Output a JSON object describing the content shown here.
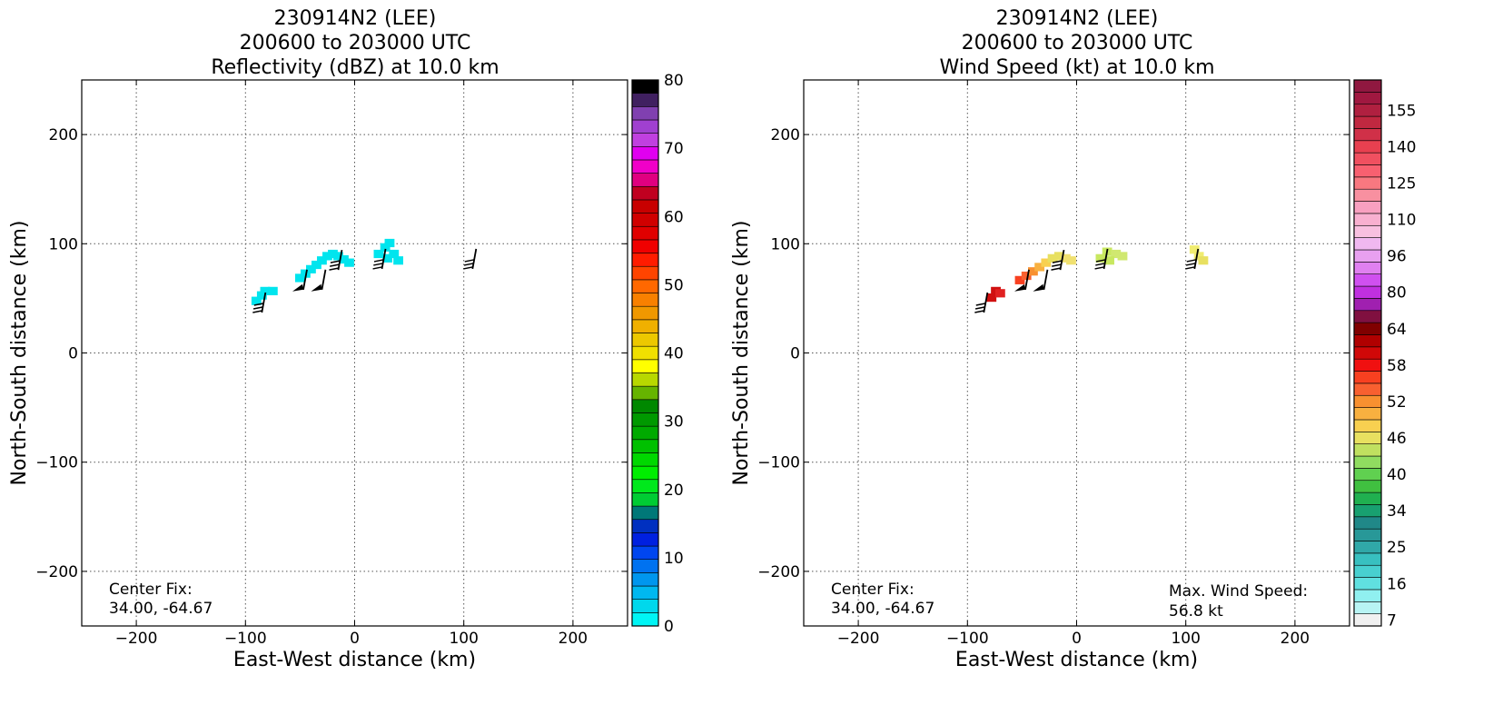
{
  "chart_data": [
    {
      "type": "heatmap",
      "title_lines": [
        "230914N2 (LEE)",
        "200600 to 203000 UTC",
        "Reflectivity (dBZ) at 10.0 km"
      ],
      "xlabel": "East-West distance (km)",
      "ylabel": "North-South distance (km)",
      "xlim": [
        -250,
        250
      ],
      "ylim": [
        -250,
        250
      ],
      "xticks": [
        -200,
        -100,
        0,
        100,
        200
      ],
      "yticks": [
        -200,
        -100,
        0,
        100,
        200
      ],
      "xtick_labels": [
        "−200",
        "−100",
        "0",
        "100",
        "200"
      ],
      "ytick_labels": [
        "−200",
        "−100",
        "0",
        "100",
        "200"
      ],
      "grid": true,
      "annotation": [
        "Center Fix:",
        "34.00, -64.67"
      ],
      "colorbar": {
        "min": 0,
        "max": 80,
        "ticks": [
          0,
          10,
          20,
          30,
          40,
          50,
          60,
          70,
          80
        ],
        "tick_labels": [
          "0",
          "10",
          "20",
          "30",
          "40",
          "50",
          "60",
          "70",
          "80"
        ],
        "colors": [
          "#00f5f5",
          "#00d8ec",
          "#00b8f0",
          "#0096ee",
          "#0072f0",
          "#0046f0",
          "#0020e0",
          "#0030c0",
          "#007878",
          "#00cc33",
          "#00e81c",
          "#00ee00",
          "#00d800",
          "#00c000",
          "#00aa00",
          "#009900",
          "#008800",
          "#66b400",
          "#b8d800",
          "#ffff00",
          "#f0e000",
          "#ecc800",
          "#f0b000",
          "#f09800",
          "#f88000",
          "#ff6800",
          "#ff4400",
          "#ff1c00",
          "#f00000",
          "#e00000",
          "#d00000",
          "#c80000",
          "#c00020",
          "#e00080",
          "#f000c8",
          "#e000f0",
          "#c040e0",
          "#a040d0",
          "#8040b0",
          "#402060",
          "#000000"
        ]
      },
      "regions": [
        {
          "name": "echo-west",
          "color": "#00e5ee",
          "cells": [
            [
              -90,
              47
            ],
            [
              -82,
              56
            ],
            [
              -75,
              56
            ],
            [
              -85,
              52
            ]
          ]
        },
        {
          "name": "echo-central",
          "color": "#00e5ee",
          "cells": [
            [
              -50,
              68
            ],
            [
              -45,
              72
            ],
            [
              -40,
              76
            ],
            [
              -35,
              80
            ],
            [
              -30,
              84
            ],
            [
              -25,
              88
            ],
            [
              -20,
              90
            ],
            [
              -15,
              88
            ],
            [
              -10,
              85
            ],
            [
              -5,
              82
            ]
          ]
        },
        {
          "name": "echo-east",
          "color": "#00e5ee",
          "cells": [
            [
              22,
              90
            ],
            [
              28,
              96
            ],
            [
              32,
              100
            ],
            [
              36,
              90
            ],
            [
              40,
              84
            ],
            [
              30,
              86
            ]
          ]
        }
      ],
      "wind_barbs": [
        {
          "x": -85,
          "y": 37,
          "speed": 30
        },
        {
          "x": -47,
          "y": 58,
          "speed": 50
        },
        {
          "x": -30,
          "y": 58,
          "speed": 50
        },
        {
          "x": -15,
          "y": 76,
          "speed": 30
        },
        {
          "x": 25,
          "y": 77,
          "speed": 25
        },
        {
          "x": 108,
          "y": 77,
          "speed": 25
        }
      ]
    },
    {
      "type": "heatmap",
      "title_lines": [
        "230914N2 (LEE)",
        "200600 to 203000 UTC",
        "Wind Speed (kt) at 10.0 km"
      ],
      "xlabel": "East-West distance (km)",
      "ylabel": "North-South distance (km)",
      "xlim": [
        -250,
        250
      ],
      "ylim": [
        -250,
        250
      ],
      "xticks": [
        -200,
        -100,
        0,
        100,
        200
      ],
      "yticks": [
        -200,
        -100,
        0,
        100,
        200
      ],
      "xtick_labels": [
        "−200",
        "−100",
        "0",
        "100",
        "200"
      ],
      "ytick_labels": [
        "−200",
        "−100",
        "0",
        "100",
        "200"
      ],
      "grid": true,
      "annotation": [
        "Center Fix:",
        "34.00, -64.67"
      ],
      "annotation_right": [
        "Max. Wind Speed:",
        "56.8 kt"
      ],
      "colorbar": {
        "tick_labels": [
          "7",
          "16",
          "25",
          "34",
          "40",
          "46",
          "52",
          "58",
          "64",
          "80",
          "96",
          "110",
          "125",
          "140",
          "155"
        ],
        "tick_bins": [
          0,
          3,
          6,
          9,
          12,
          15,
          18,
          21,
          24,
          27,
          30,
          33,
          36,
          39,
          42
        ],
        "colors": [
          "#f0f0f0",
          "#b8f4f4",
          "#90f0f0",
          "#60e0e0",
          "#48d0d0",
          "#38c0c0",
          "#30a8a8",
          "#289898",
          "#208888",
          "#18a070",
          "#20b050",
          "#40c040",
          "#60d050",
          "#90dc60",
          "#c0e060",
          "#e8e060",
          "#f8d050",
          "#f8b040",
          "#f89030",
          "#f86030",
          "#f84020",
          "#f01010",
          "#d00808",
          "#b00000",
          "#800000",
          "#801040",
          "#a020b0",
          "#c030e0",
          "#d050f0",
          "#e080f0",
          "#e8a0f0",
          "#f0b8f0",
          "#f8c0e0",
          "#f8b0d0",
          "#f8a0c0",
          "#f890a0",
          "#f87880",
          "#f86070",
          "#f05060",
          "#e84050",
          "#d03048",
          "#c02840",
          "#b02040",
          "#a01840",
          "#901840"
        ]
      },
      "regions": [
        {
          "name": "wind-west",
          "cells": [
            [
              -78,
              50,
              "#d01010"
            ],
            [
              -74,
              56,
              "#d01010"
            ],
            [
              -70,
              54,
              "#e02020"
            ]
          ]
        },
        {
          "name": "wind-central",
          "cells": [
            [
              -52,
              66,
              "#f84020"
            ],
            [
              -46,
              70,
              "#f86030"
            ],
            [
              -40,
              74,
              "#f89030"
            ],
            [
              -34,
              78,
              "#f8b040"
            ],
            [
              -28,
              82,
              "#f8d050"
            ],
            [
              -22,
              86,
              "#e8e060"
            ],
            [
              -16,
              88,
              "#e8e060"
            ],
            [
              -10,
              86,
              "#f0e070"
            ],
            [
              -5,
              84,
              "#f0e070"
            ]
          ]
        },
        {
          "name": "wind-east",
          "cells": [
            [
              22,
              86,
              "#c8e860"
            ],
            [
              28,
              92,
              "#c8e860"
            ],
            [
              36,
              90,
              "#d0e870"
            ],
            [
              42,
              88,
              "#d0e870"
            ],
            [
              30,
              84,
              "#c8e860"
            ]
          ]
        },
        {
          "name": "wind-far-east",
          "cells": [
            [
              108,
              94,
              "#f0ec70"
            ],
            [
              112,
              88,
              "#f0ec70"
            ],
            [
              116,
              84,
              "#e8e060"
            ]
          ]
        }
      ],
      "wind_barbs": [
        {
          "x": -85,
          "y": 37,
          "speed": 30
        },
        {
          "x": -47,
          "y": 58,
          "speed": 50
        },
        {
          "x": -30,
          "y": 58,
          "speed": 50
        },
        {
          "x": -15,
          "y": 76,
          "speed": 30
        },
        {
          "x": 25,
          "y": 77,
          "speed": 25
        },
        {
          "x": 108,
          "y": 77,
          "speed": 25
        }
      ]
    }
  ]
}
